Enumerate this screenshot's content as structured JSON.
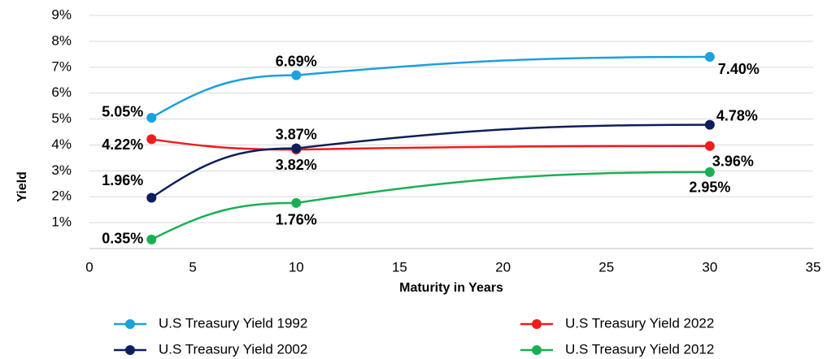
{
  "chart_data": {
    "type": "line",
    "x_label": "Maturity in Years",
    "y_label": "Yield",
    "x": [
      3,
      10,
      30
    ],
    "series": [
      {
        "name": "U.S Treasury Yield 1992",
        "color": "#1ba1dc",
        "values": [
          5.05,
          6.69,
          7.4
        ],
        "value_labels": [
          "5.05%",
          "6.69%",
          "7.40%"
        ]
      },
      {
        "name": "U.S Treasury Yield 2022",
        "color": "#ee1c1c",
        "values": [
          4.22,
          3.82,
          3.96
        ],
        "value_labels": [
          "4.22%",
          "3.82%",
          "3.96%"
        ]
      },
      {
        "name": "U.S Treasury Yield 2002",
        "color": "#0d1f5c",
        "values": [
          1.96,
          3.87,
          4.78
        ],
        "value_labels": [
          "1.96%",
          "3.87%",
          "4.78%"
        ]
      },
      {
        "name": "U.S Treasury Yield 2012",
        "color": "#1aaf54",
        "values": [
          0.35,
          1.76,
          2.95
        ],
        "value_labels": [
          "0.35%",
          "1.76%",
          "2.95%"
        ]
      }
    ],
    "xlim": [
      0,
      35
    ],
    "xticks": [
      0,
      5,
      10,
      15,
      20,
      25,
      30,
      35
    ],
    "ylim": [
      0,
      9
    ],
    "yticks": [
      {
        "value": 1,
        "label": "1%"
      },
      {
        "value": 2,
        "label": "2%"
      },
      {
        "value": 3,
        "label": "3%"
      },
      {
        "value": 4,
        "label": "4%"
      },
      {
        "value": 5,
        "label": "5%"
      },
      {
        "value": 6,
        "label": "6%"
      },
      {
        "value": 7,
        "label": "7%"
      },
      {
        "value": 8,
        "label": "8%"
      },
      {
        "value": 9,
        "label": "9%"
      }
    ],
    "grid": true
  }
}
